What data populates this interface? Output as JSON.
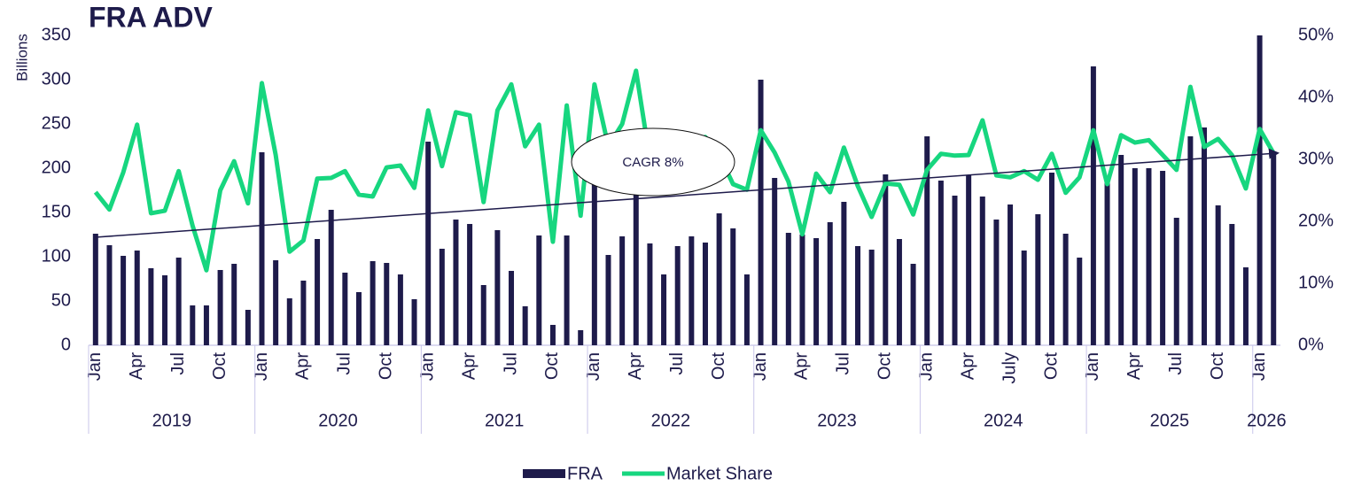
{
  "chart_data": {
    "type": "bar_line",
    "title": "FRA ADV",
    "y_label": "Billions",
    "categories": [
      "Jan",
      null,
      null,
      "Apr",
      null,
      null,
      "Jul",
      null,
      null,
      "Oct",
      null,
      null,
      "Jan",
      null,
      null,
      "Apr",
      null,
      null,
      "Jul",
      null,
      null,
      "Oct",
      null,
      null,
      "Jan",
      null,
      null,
      "Apr",
      null,
      null,
      "Jul",
      null,
      null,
      "Oct",
      null,
      null,
      "Jan",
      null,
      null,
      "Apr",
      null,
      null,
      "Jul",
      null,
      null,
      "Oct",
      null,
      null,
      "Jan",
      null,
      null,
      "Apr",
      null,
      null,
      "Jul",
      null,
      null,
      "Oct",
      null,
      null,
      "Jan",
      null,
      null,
      "Apr",
      null,
      null,
      "July",
      null,
      null,
      "Oct",
      null,
      null,
      "Jan",
      null,
      null,
      "Apr",
      null,
      null,
      "Jul",
      null,
      null,
      "Oct",
      null,
      null,
      "Jan",
      null
    ],
    "groups": [
      {
        "label": "2019",
        "span": 12
      },
      {
        "label": "2020",
        "span": 12
      },
      {
        "label": "2021",
        "span": 12
      },
      {
        "label": "2022",
        "span": 12
      },
      {
        "label": "2023",
        "span": 12
      },
      {
        "label": "2024",
        "span": 12
      },
      {
        "label": "2025",
        "span": 12
      },
      {
        "label": "2026",
        "span": 2
      }
    ],
    "series": [
      {
        "name": "FRA",
        "type": "bar",
        "color": "#1e1b4b",
        "values": [
          126,
          113,
          101,
          107,
          87,
          79,
          99,
          45,
          45,
          85,
          92,
          40,
          218,
          96,
          53,
          73,
          120,
          153,
          82,
          60,
          95,
          93,
          80,
          52,
          230,
          109,
          142,
          137,
          68,
          130,
          84,
          44,
          124,
          23,
          124,
          17,
          190,
          102,
          123,
          230,
          115,
          80,
          112,
          123,
          116,
          149,
          132,
          80,
          300,
          189,
          127,
          125,
          121,
          139,
          162,
          112,
          108,
          193,
          120,
          92,
          236,
          186,
          169,
          192,
          168,
          142,
          159,
          107,
          148,
          195,
          126,
          99,
          315,
          185,
          215,
          200,
          200,
          197,
          144,
          236,
          246,
          158,
          137,
          88,
          350,
          215
        ]
      },
      {
        "name": "Market Share",
        "type": "line",
        "axis": "y2",
        "color": "#17d67f",
        "values": [
          24.7,
          21.9,
          27.9,
          35.6,
          21.3,
          21.7,
          28.1,
          19.3,
          12.1,
          25,
          29.7,
          22.9,
          42.3,
          30.7,
          15.1,
          16.9,
          26.9,
          27,
          28.1,
          24.3,
          24,
          28.7,
          29,
          25.4,
          37.9,
          28.9,
          37.6,
          37.1,
          23.1,
          37.9,
          42.1,
          32.1,
          35.6,
          16.7,
          38.7,
          20.9,
          42.1,
          32.1,
          35.7,
          44.3,
          30,
          31.4,
          30.7,
          32.9,
          33.6,
          30.7,
          26,
          25.1,
          34.7,
          31.1,
          26.4,
          17.9,
          27.7,
          24.7,
          31.9,
          25.7,
          20.7,
          26.1,
          25.9,
          21.1,
          28.3,
          30.9,
          30.6,
          30.7,
          36.3,
          27.4,
          27.1,
          28.1,
          26.7,
          30.9,
          24.6,
          27.1,
          34.7,
          26,
          33.9,
          32.7,
          33.1,
          30.7,
          28.3,
          41.7,
          32,
          33.3,
          30.7,
          25.3,
          34.9,
          31
        ]
      }
    ],
    "trend": {
      "color": "#1e1b4b",
      "values": [
        122,
        217
      ]
    },
    "annotation": "CAGR 8%",
    "ylim": [
      0,
      350
    ],
    "yticks": [
      0,
      50,
      100,
      150,
      200,
      250,
      300,
      350
    ],
    "y2lim": [
      0,
      50
    ],
    "y2ticks": [
      {
        "value": 0,
        "label": "0%"
      },
      {
        "value": 10,
        "label": "10%"
      },
      {
        "value": 20,
        "label": "20%"
      },
      {
        "value": 30,
        "label": "30%"
      },
      {
        "value": 40,
        "label": "40%"
      },
      {
        "value": 50,
        "label": "50%"
      }
    ],
    "legend": "bottom"
  }
}
